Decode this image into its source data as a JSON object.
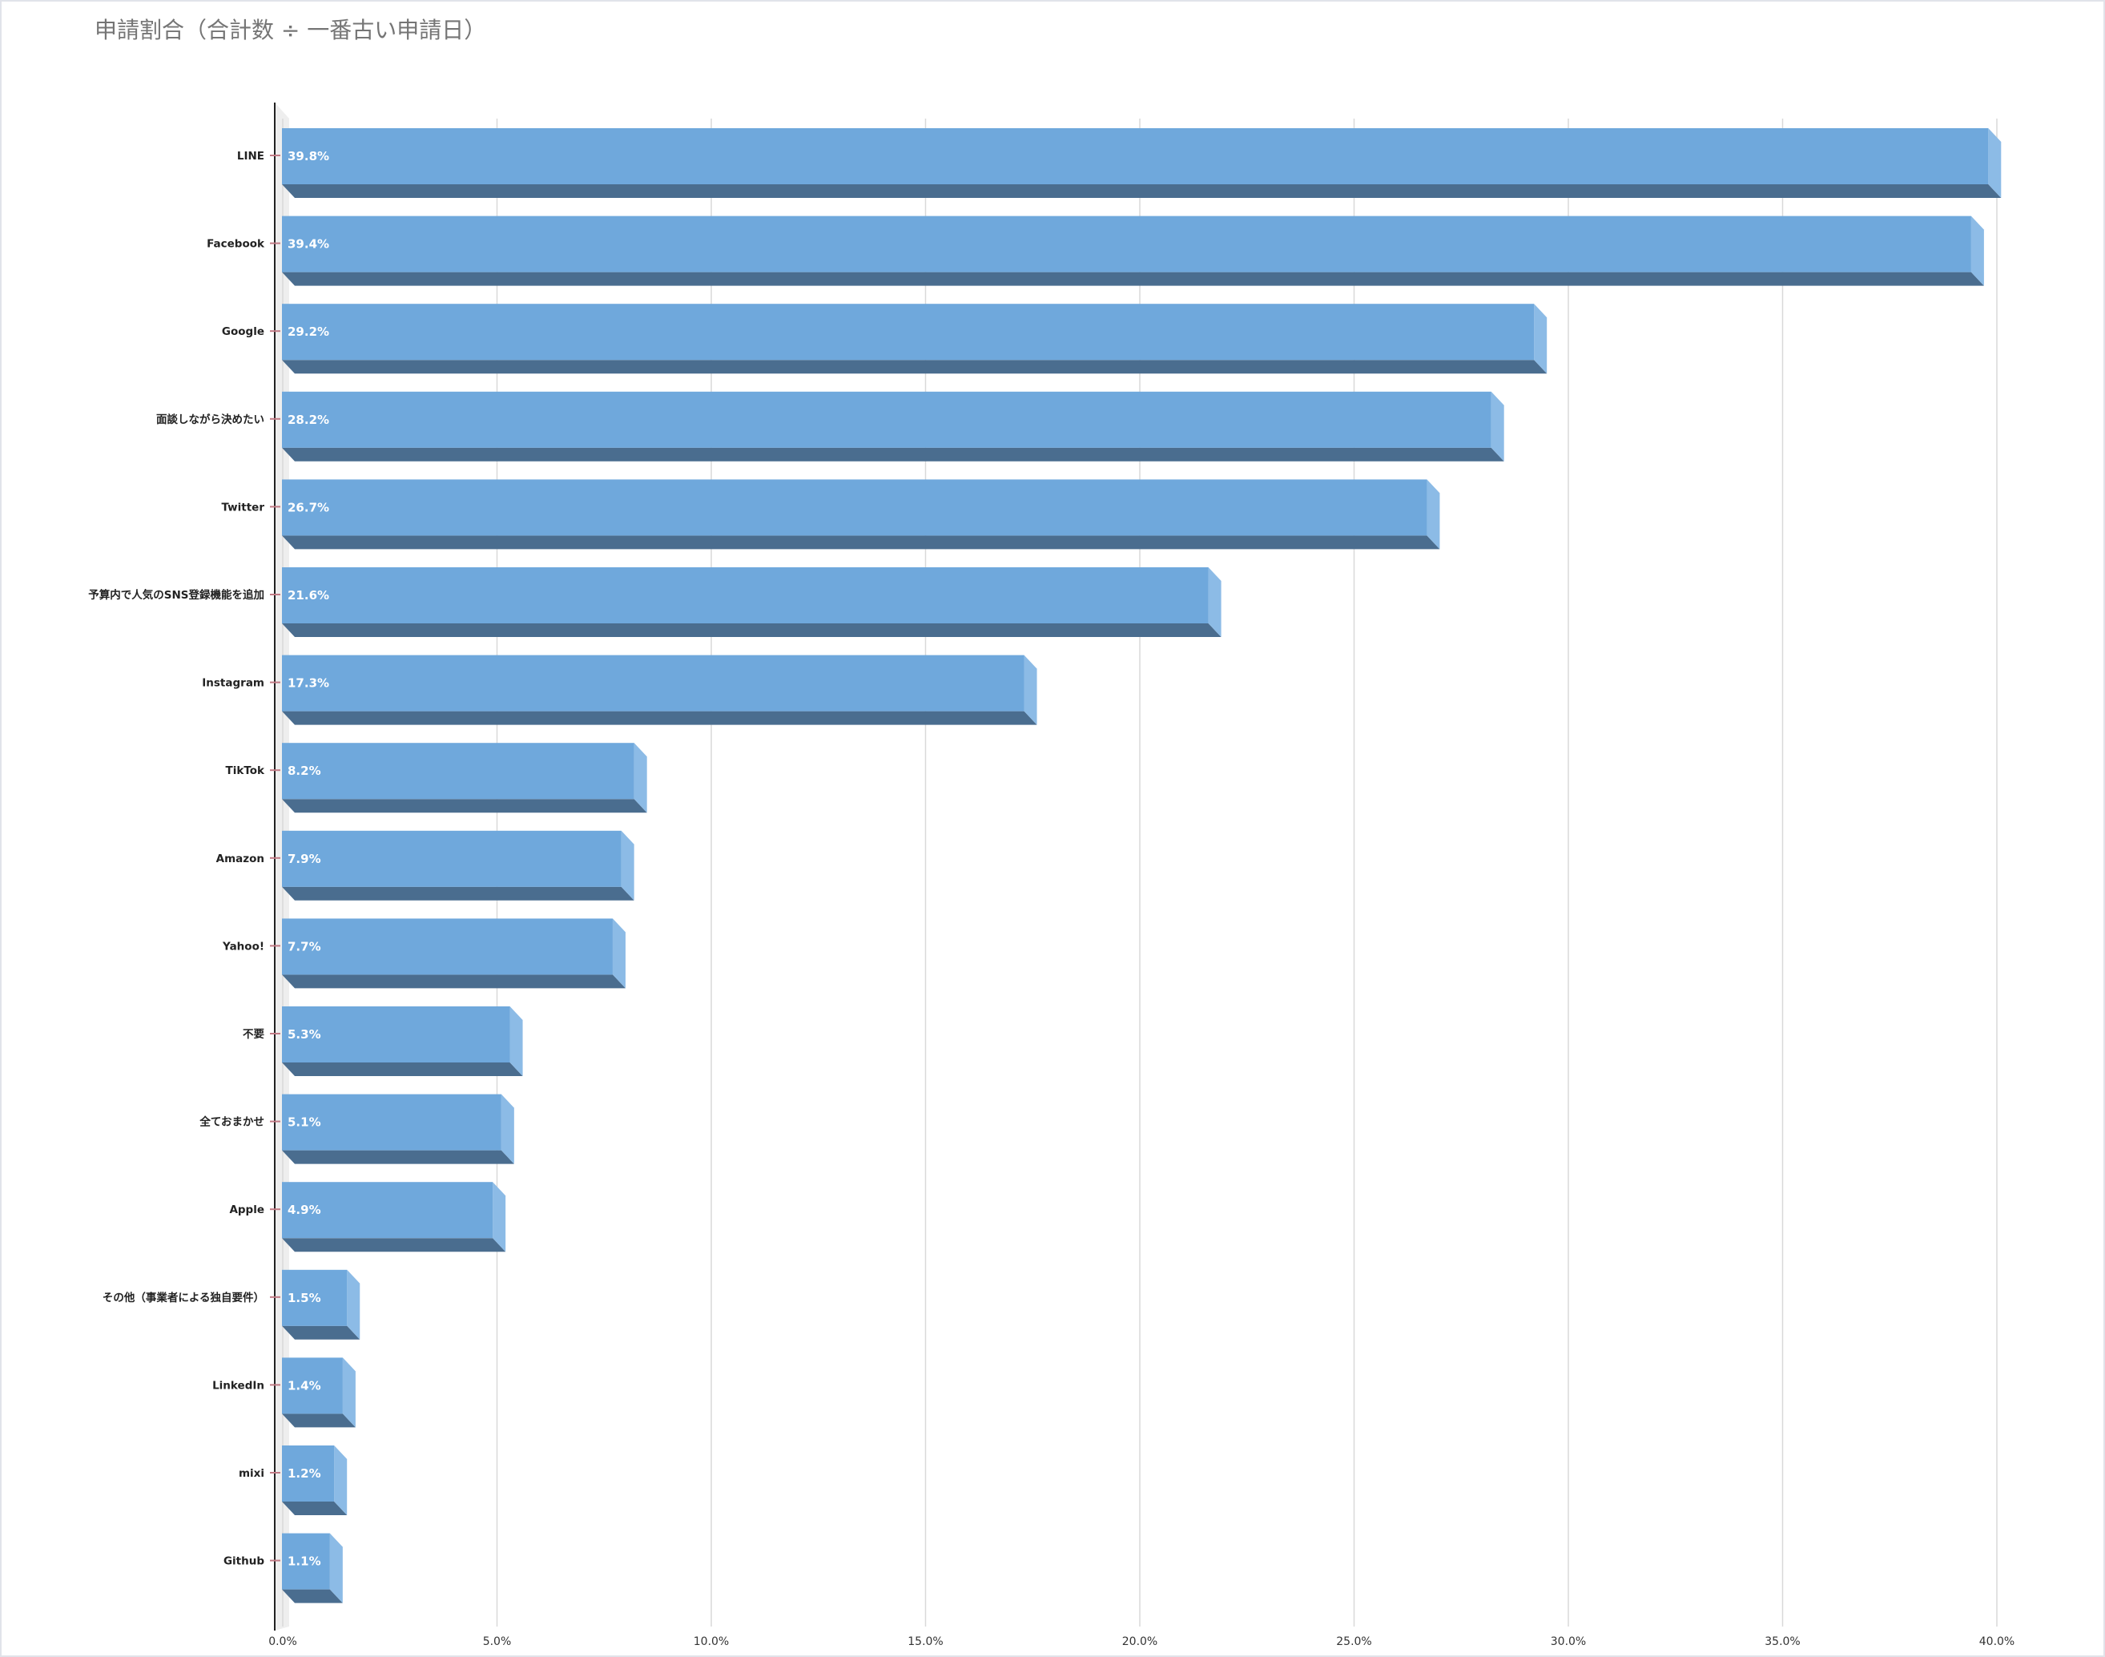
{
  "chart_data": {
    "type": "bar",
    "orientation": "horizontal",
    "style": "3d",
    "title": "申請割合（合計数 ÷ 一番古い申請日）",
    "categories": [
      "LINE",
      "Facebook",
      "Google",
      "面談しながら決めたい",
      "Twitter",
      "予算内で人気のSNS登録機能を追加",
      "Instagram",
      "TikTok",
      "Amazon",
      "Yahoo!",
      "不要",
      "全ておまかせ",
      "Apple",
      "その他（事業者による独自要件）",
      "LinkedIn",
      "mixi",
      "Github"
    ],
    "values": [
      39.8,
      39.4,
      29.2,
      28.2,
      26.7,
      21.6,
      17.3,
      8.2,
      7.9,
      7.7,
      5.3,
      5.1,
      4.9,
      1.5,
      1.4,
      1.2,
      1.1
    ],
    "value_labels": [
      "39.8%",
      "39.4%",
      "29.2%",
      "28.2%",
      "26.7%",
      "21.6%",
      "17.3%",
      "8.2%",
      "7.9%",
      "7.7%",
      "5.3%",
      "5.1%",
      "4.9%",
      "1.5%",
      "1.4%",
      "1.2%",
      "1.1%"
    ],
    "x_ticks": [
      0,
      5,
      10,
      15,
      20,
      25,
      30,
      35,
      40
    ],
    "x_tick_labels": [
      "0.0%",
      "5.0%",
      "10.0%",
      "15.0%",
      "20.0%",
      "25.0%",
      "30.0%",
      "35.0%",
      "40.0%"
    ],
    "xlim": [
      0,
      40
    ],
    "xlabel": "",
    "ylabel": "",
    "grid": true,
    "legend": "none",
    "colors": {
      "bar_front": "#6fa8dc",
      "bar_bottom": "#4a6d8f",
      "bar_side": "#8cbbe6",
      "grid": "#d9d9d9",
      "tick_mark": "#c27a85"
    }
  }
}
